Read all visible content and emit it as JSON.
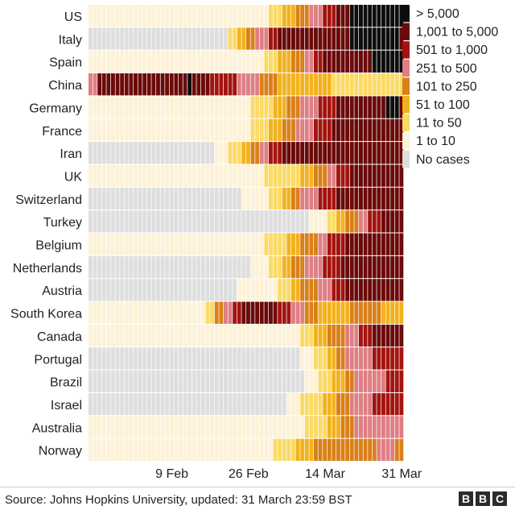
{
  "chart_data": {
    "type": "heatmap",
    "title": "",
    "xlabel": "",
    "ylabel": "",
    "rows": [
      "US",
      "Italy",
      "Spain",
      "China",
      "Germany",
      "France",
      "Iran",
      "UK",
      "Switzerland",
      "Turkey",
      "Belgium",
      "Netherlands",
      "Austria",
      "South Korea",
      "Canada",
      "Portugal",
      "Brazil",
      "Israel",
      "Australia",
      "Norway"
    ],
    "x_ticks": [
      "9 Feb",
      "26 Feb",
      "14 Mar",
      "31 Mar"
    ],
    "x_range": [
      "22 Jan",
      "31 Mar"
    ],
    "legend": {
      "position": "right",
      "bins": [
        {
          "label": "> 5,000",
          "color": "#0d0d0d"
        },
        {
          "label": "1,001 to 5,000",
          "color": "#6b0a0a"
        },
        {
          "label": "501 to 1,000",
          "color": "#a3140f"
        },
        {
          "label": "251 to 500",
          "color": "#de7f84"
        },
        {
          "label": "101 to 250",
          "color": "#d98018"
        },
        {
          "label": "51 to 100",
          "color": "#f2b21e"
        },
        {
          "label": "11 to 50",
          "color": "#fbda66"
        },
        {
          "label": "1 to 10",
          "color": "#fdf2d8"
        },
        {
          "label": "No cases",
          "color": "#dedede"
        }
      ]
    },
    "series": [
      {
        "country": "US",
        "segments": [
          [
            "22 Jan",
            "1 Mar",
            "1 to 10"
          ],
          [
            "2 Mar",
            "4 Mar",
            "11 to 50"
          ],
          [
            "5 Mar",
            "7 Mar",
            "51 to 100"
          ],
          [
            "8 Mar",
            "10 Mar",
            "101 to 250"
          ],
          [
            "11 Mar",
            "13 Mar",
            "251 to 500"
          ],
          [
            "14 Mar",
            "16 Mar",
            "501 to 1,000"
          ],
          [
            "17 Mar",
            "19 Mar",
            "1,001 to 5,000"
          ],
          [
            "20 Mar",
            "31 Mar",
            "> 5,000"
          ]
        ]
      },
      {
        "country": "Italy",
        "segments": [
          [
            "22 Jan",
            "21 Feb",
            "No cases"
          ],
          [
            "22 Feb",
            "23 Feb",
            "11 to 50"
          ],
          [
            "24 Feb",
            "25 Feb",
            "51 to 100"
          ],
          [
            "26 Feb",
            "27 Feb",
            "101 to 250"
          ],
          [
            "28 Feb",
            "1 Mar",
            "251 to 500"
          ],
          [
            "2 Mar",
            "3 Mar",
            "501 to 1,000"
          ],
          [
            "4 Mar",
            "19 Mar",
            "1,001 to 5,000"
          ],
          [
            "20 Mar",
            "30 Mar",
            "> 5,000"
          ],
          [
            "31 Mar",
            "31 Mar",
            "1,001 to 5,000"
          ]
        ]
      },
      {
        "country": "Spain",
        "segments": [
          [
            "22 Jan",
            "29 Feb",
            "1 to 10"
          ],
          [
            "1 Mar",
            "3 Mar",
            "11 to 50"
          ],
          [
            "4 Mar",
            "6 Mar",
            "51 to 100"
          ],
          [
            "7 Mar",
            "9 Mar",
            "101 to 250"
          ],
          [
            "10 Mar",
            "11 Mar",
            "251 to 500"
          ],
          [
            "12 Mar",
            "13 Mar",
            "501 to 1,000"
          ],
          [
            "14 Mar",
            "24 Mar",
            "1,001 to 5,000"
          ],
          [
            "25 Mar",
            "31 Mar",
            "> 5,000"
          ]
        ]
      },
      {
        "country": "China",
        "segments": [
          [
            "22 Jan",
            "23 Jan",
            "251 to 500"
          ],
          [
            "24 Jan",
            "12 Feb",
            "1,001 to 5,000"
          ],
          [
            "13 Feb",
            "13 Feb",
            "> 5,000"
          ],
          [
            "14 Feb",
            "17 Feb",
            "1,001 to 5,000"
          ],
          [
            "18 Feb",
            "23 Feb",
            "501 to 1,000"
          ],
          [
            "24 Feb",
            "28 Feb",
            "251 to 500"
          ],
          [
            "29 Feb",
            "3 Mar",
            "101 to 250"
          ],
          [
            "4 Mar",
            "15 Mar",
            "51 to 100"
          ],
          [
            "16 Mar",
            "31 Mar",
            "11 to 50"
          ]
        ]
      },
      {
        "country": "Germany",
        "segments": [
          [
            "22 Jan",
            "26 Feb",
            "1 to 10"
          ],
          [
            "27 Feb",
            "2 Mar",
            "11 to 50"
          ],
          [
            "3 Mar",
            "5 Mar",
            "51 to 100"
          ],
          [
            "6 Mar",
            "8 Mar",
            "101 to 250"
          ],
          [
            "9 Mar",
            "12 Mar",
            "251 to 500"
          ],
          [
            "13 Mar",
            "16 Mar",
            "501 to 1,000"
          ],
          [
            "17 Mar",
            "27 Mar",
            "1,001 to 5,000"
          ],
          [
            "28 Mar",
            "30 Mar",
            "> 5,000"
          ],
          [
            "31 Mar",
            "31 Mar",
            "1,001 to 5,000"
          ]
        ]
      },
      {
        "country": "France",
        "segments": [
          [
            "22 Jan",
            "26 Feb",
            "1 to 10"
          ],
          [
            "27 Feb",
            "1 Mar",
            "11 to 50"
          ],
          [
            "2 Mar",
            "4 Mar",
            "51 to 100"
          ],
          [
            "5 Mar",
            "7 Mar",
            "101 to 250"
          ],
          [
            "8 Mar",
            "11 Mar",
            "251 to 500"
          ],
          [
            "12 Mar",
            "15 Mar",
            "501 to 1,000"
          ],
          [
            "16 Mar",
            "31 Mar",
            "1,001 to 5,000"
          ]
        ]
      },
      {
        "country": "Iran",
        "segments": [
          [
            "22 Jan",
            "18 Feb",
            "No cases"
          ],
          [
            "19 Feb",
            "21 Feb",
            "1 to 10"
          ],
          [
            "22 Feb",
            "24 Feb",
            "11 to 50"
          ],
          [
            "25 Feb",
            "26 Feb",
            "51 to 100"
          ],
          [
            "27 Feb",
            "28 Feb",
            "101 to 250"
          ],
          [
            "29 Feb",
            "1 Mar",
            "251 to 500"
          ],
          [
            "2 Mar",
            "4 Mar",
            "501 to 1,000"
          ],
          [
            "5 Mar",
            "31 Mar",
            "1,001 to 5,000"
          ]
        ]
      },
      {
        "country": "UK",
        "segments": [
          [
            "22 Jan",
            "29 Feb",
            "1 to 10"
          ],
          [
            "1 Mar",
            "8 Mar",
            "11 to 50"
          ],
          [
            "9 Mar",
            "11 Mar",
            "51 to 100"
          ],
          [
            "12 Mar",
            "14 Mar",
            "101 to 250"
          ],
          [
            "15 Mar",
            "16 Mar",
            "251 to 500"
          ],
          [
            "17 Mar",
            "19 Mar",
            "501 to 1,000"
          ],
          [
            "20 Mar",
            "31 Mar",
            "1,001 to 5,000"
          ]
        ]
      },
      {
        "country": "Switzerland",
        "segments": [
          [
            "22 Jan",
            "24 Feb",
            "No cases"
          ],
          [
            "25 Feb",
            "1 Mar",
            "1 to 10"
          ],
          [
            "2 Mar",
            "4 Mar",
            "11 to 50"
          ],
          [
            "5 Mar",
            "6 Mar",
            "51 to 100"
          ],
          [
            "7 Mar",
            "8 Mar",
            "101 to 250"
          ],
          [
            "9 Mar",
            "12 Mar",
            "251 to 500"
          ],
          [
            "13 Mar",
            "16 Mar",
            "501 to 1,000"
          ],
          [
            "17 Mar",
            "31 Mar",
            "1,001 to 5,000"
          ]
        ]
      },
      {
        "country": "Turkey",
        "segments": [
          [
            "22 Jan",
            "10 Mar",
            "No cases"
          ],
          [
            "11 Mar",
            "14 Mar",
            "1 to 10"
          ],
          [
            "15 Mar",
            "16 Mar",
            "11 to 50"
          ],
          [
            "17 Mar",
            "18 Mar",
            "51 to 100"
          ],
          [
            "19 Mar",
            "21 Mar",
            "101 to 250"
          ],
          [
            "22 Mar",
            "23 Mar",
            "251 to 500"
          ],
          [
            "24 Mar",
            "26 Mar",
            "501 to 1,000"
          ],
          [
            "27 Mar",
            "31 Mar",
            "1,001 to 5,000"
          ]
        ]
      },
      {
        "country": "Belgium",
        "segments": [
          [
            "22 Jan",
            "29 Feb",
            "1 to 10"
          ],
          [
            "1 Mar",
            "5 Mar",
            "11 to 50"
          ],
          [
            "6 Mar",
            "8 Mar",
            "51 to 100"
          ],
          [
            "9 Mar",
            "12 Mar",
            "101 to 250"
          ],
          [
            "13 Mar",
            "14 Mar",
            "251 to 500"
          ],
          [
            "15 Mar",
            "18 Mar",
            "501 to 1,000"
          ],
          [
            "19 Mar",
            "31 Mar",
            "1,001 to 5,000"
          ]
        ]
      },
      {
        "country": "Netherlands",
        "segments": [
          [
            "22 Jan",
            "26 Feb",
            "No cases"
          ],
          [
            "27 Feb",
            "1 Mar",
            "1 to 10"
          ],
          [
            "2 Mar",
            "4 Mar",
            "11 to 50"
          ],
          [
            "5 Mar",
            "6 Mar",
            "51 to 100"
          ],
          [
            "7 Mar",
            "9 Mar",
            "101 to 250"
          ],
          [
            "10 Mar",
            "13 Mar",
            "251 to 500"
          ],
          [
            "14 Mar",
            "17 Mar",
            "501 to 1,000"
          ],
          [
            "18 Mar",
            "31 Mar",
            "1,001 to 5,000"
          ]
        ]
      },
      {
        "country": "Austria",
        "segments": [
          [
            "22 Jan",
            "23 Feb",
            "No cases"
          ],
          [
            "24 Feb",
            "3 Mar",
            "1 to 10"
          ],
          [
            "4 Mar",
            "6 Mar",
            "11 to 50"
          ],
          [
            "7 Mar",
            "8 Mar",
            "51 to 100"
          ],
          [
            "9 Mar",
            "12 Mar",
            "101 to 250"
          ],
          [
            "13 Mar",
            "15 Mar",
            "251 to 500"
          ],
          [
            "16 Mar",
            "18 Mar",
            "501 to 1,000"
          ],
          [
            "19 Mar",
            "31 Mar",
            "1,001 to 5,000"
          ]
        ]
      },
      {
        "country": "South Korea",
        "segments": [
          [
            "22 Jan",
            "16 Feb",
            "1 to 10"
          ],
          [
            "17 Feb",
            "18 Feb",
            "11 to 50"
          ],
          [
            "19 Feb",
            "20 Feb",
            "101 to 250"
          ],
          [
            "21 Feb",
            "22 Feb",
            "251 to 500"
          ],
          [
            "23 Feb",
            "24 Feb",
            "501 to 1,000"
          ],
          [
            "25 Feb",
            "3 Mar",
            "1,001 to 5,000"
          ],
          [
            "4 Mar",
            "6 Mar",
            "501 to 1,000"
          ],
          [
            "7 Mar",
            "9 Mar",
            "251 to 500"
          ],
          [
            "10 Mar",
            "12 Mar",
            "101 to 250"
          ],
          [
            "13 Mar",
            "19 Mar",
            "51 to 100"
          ],
          [
            "20 Mar",
            "26 Mar",
            "101 to 250"
          ],
          [
            "27 Mar",
            "31 Mar",
            "51 to 100"
          ]
        ]
      },
      {
        "country": "Canada",
        "segments": [
          [
            "22 Jan",
            "8 Mar",
            "1 to 10"
          ],
          [
            "9 Mar",
            "11 Mar",
            "11 to 50"
          ],
          [
            "12 Mar",
            "14 Mar",
            "51 to 100"
          ],
          [
            "15 Mar",
            "18 Mar",
            "101 to 250"
          ],
          [
            "19 Mar",
            "21 Mar",
            "251 to 500"
          ],
          [
            "22 Mar",
            "24 Mar",
            "501 to 1,000"
          ],
          [
            "25 Mar",
            "31 Mar",
            "1,001 to 5,000"
          ]
        ]
      },
      {
        "country": "Portugal",
        "segments": [
          [
            "22 Jan",
            "8 Mar",
            "No cases"
          ],
          [
            "9 Mar",
            "11 Mar",
            "1 to 10"
          ],
          [
            "12 Mar",
            "14 Mar",
            "11 to 50"
          ],
          [
            "15 Mar",
            "16 Mar",
            "51 to 100"
          ],
          [
            "17 Mar",
            "18 Mar",
            "101 to 250"
          ],
          [
            "19 Mar",
            "24 Mar",
            "251 to 500"
          ],
          [
            "25 Mar",
            "31 Mar",
            "501 to 1,000"
          ]
        ]
      },
      {
        "country": "Brazil",
        "segments": [
          [
            "22 Jan",
            "9 Mar",
            "No cases"
          ],
          [
            "10 Mar",
            "12 Mar",
            "1 to 10"
          ],
          [
            "13 Mar",
            "15 Mar",
            "11 to 50"
          ],
          [
            "16 Mar",
            "18 Mar",
            "51 to 100"
          ],
          [
            "19 Mar",
            "20 Mar",
            "101 to 250"
          ],
          [
            "21 Mar",
            "27 Mar",
            "251 to 500"
          ],
          [
            "28 Mar",
            "31 Mar",
            "501 to 1,000"
          ]
        ]
      },
      {
        "country": "Israel",
        "segments": [
          [
            "22 Jan",
            "5 Mar",
            "No cases"
          ],
          [
            "6 Mar",
            "8 Mar",
            "1 to 10"
          ],
          [
            "9 Mar",
            "13 Mar",
            "11 to 50"
          ],
          [
            "14 Mar",
            "16 Mar",
            "51 to 100"
          ],
          [
            "17 Mar",
            "19 Mar",
            "101 to 250"
          ],
          [
            "20 Mar",
            "24 Mar",
            "251 to 500"
          ],
          [
            "25 Mar",
            "31 Mar",
            "501 to 1,000"
          ]
        ]
      },
      {
        "country": "Australia",
        "segments": [
          [
            "22 Jan",
            "9 Mar",
            "1 to 10"
          ],
          [
            "10 Mar",
            "14 Mar",
            "11 to 50"
          ],
          [
            "15 Mar",
            "17 Mar",
            "51 to 100"
          ],
          [
            "18 Mar",
            "20 Mar",
            "101 to 250"
          ],
          [
            "21 Mar",
            "31 Mar",
            "251 to 500"
          ]
        ]
      },
      {
        "country": "Norway",
        "segments": [
          [
            "22 Jan",
            "2 Mar",
            "1 to 10"
          ],
          [
            "3 Mar",
            "7 Mar",
            "11 to 50"
          ],
          [
            "8 Mar",
            "11 Mar",
            "51 to 100"
          ],
          [
            "12 Mar",
            "25 Mar",
            "101 to 250"
          ],
          [
            "26 Mar",
            "29 Mar",
            "251 to 500"
          ],
          [
            "30 Mar",
            "31 Mar",
            "101 to 250"
          ]
        ]
      }
    ]
  },
  "footer": {
    "source": "Source: Johns Hopkins University, updated:  31 March 23:59 BST",
    "logo": [
      "B",
      "B",
      "C"
    ]
  }
}
